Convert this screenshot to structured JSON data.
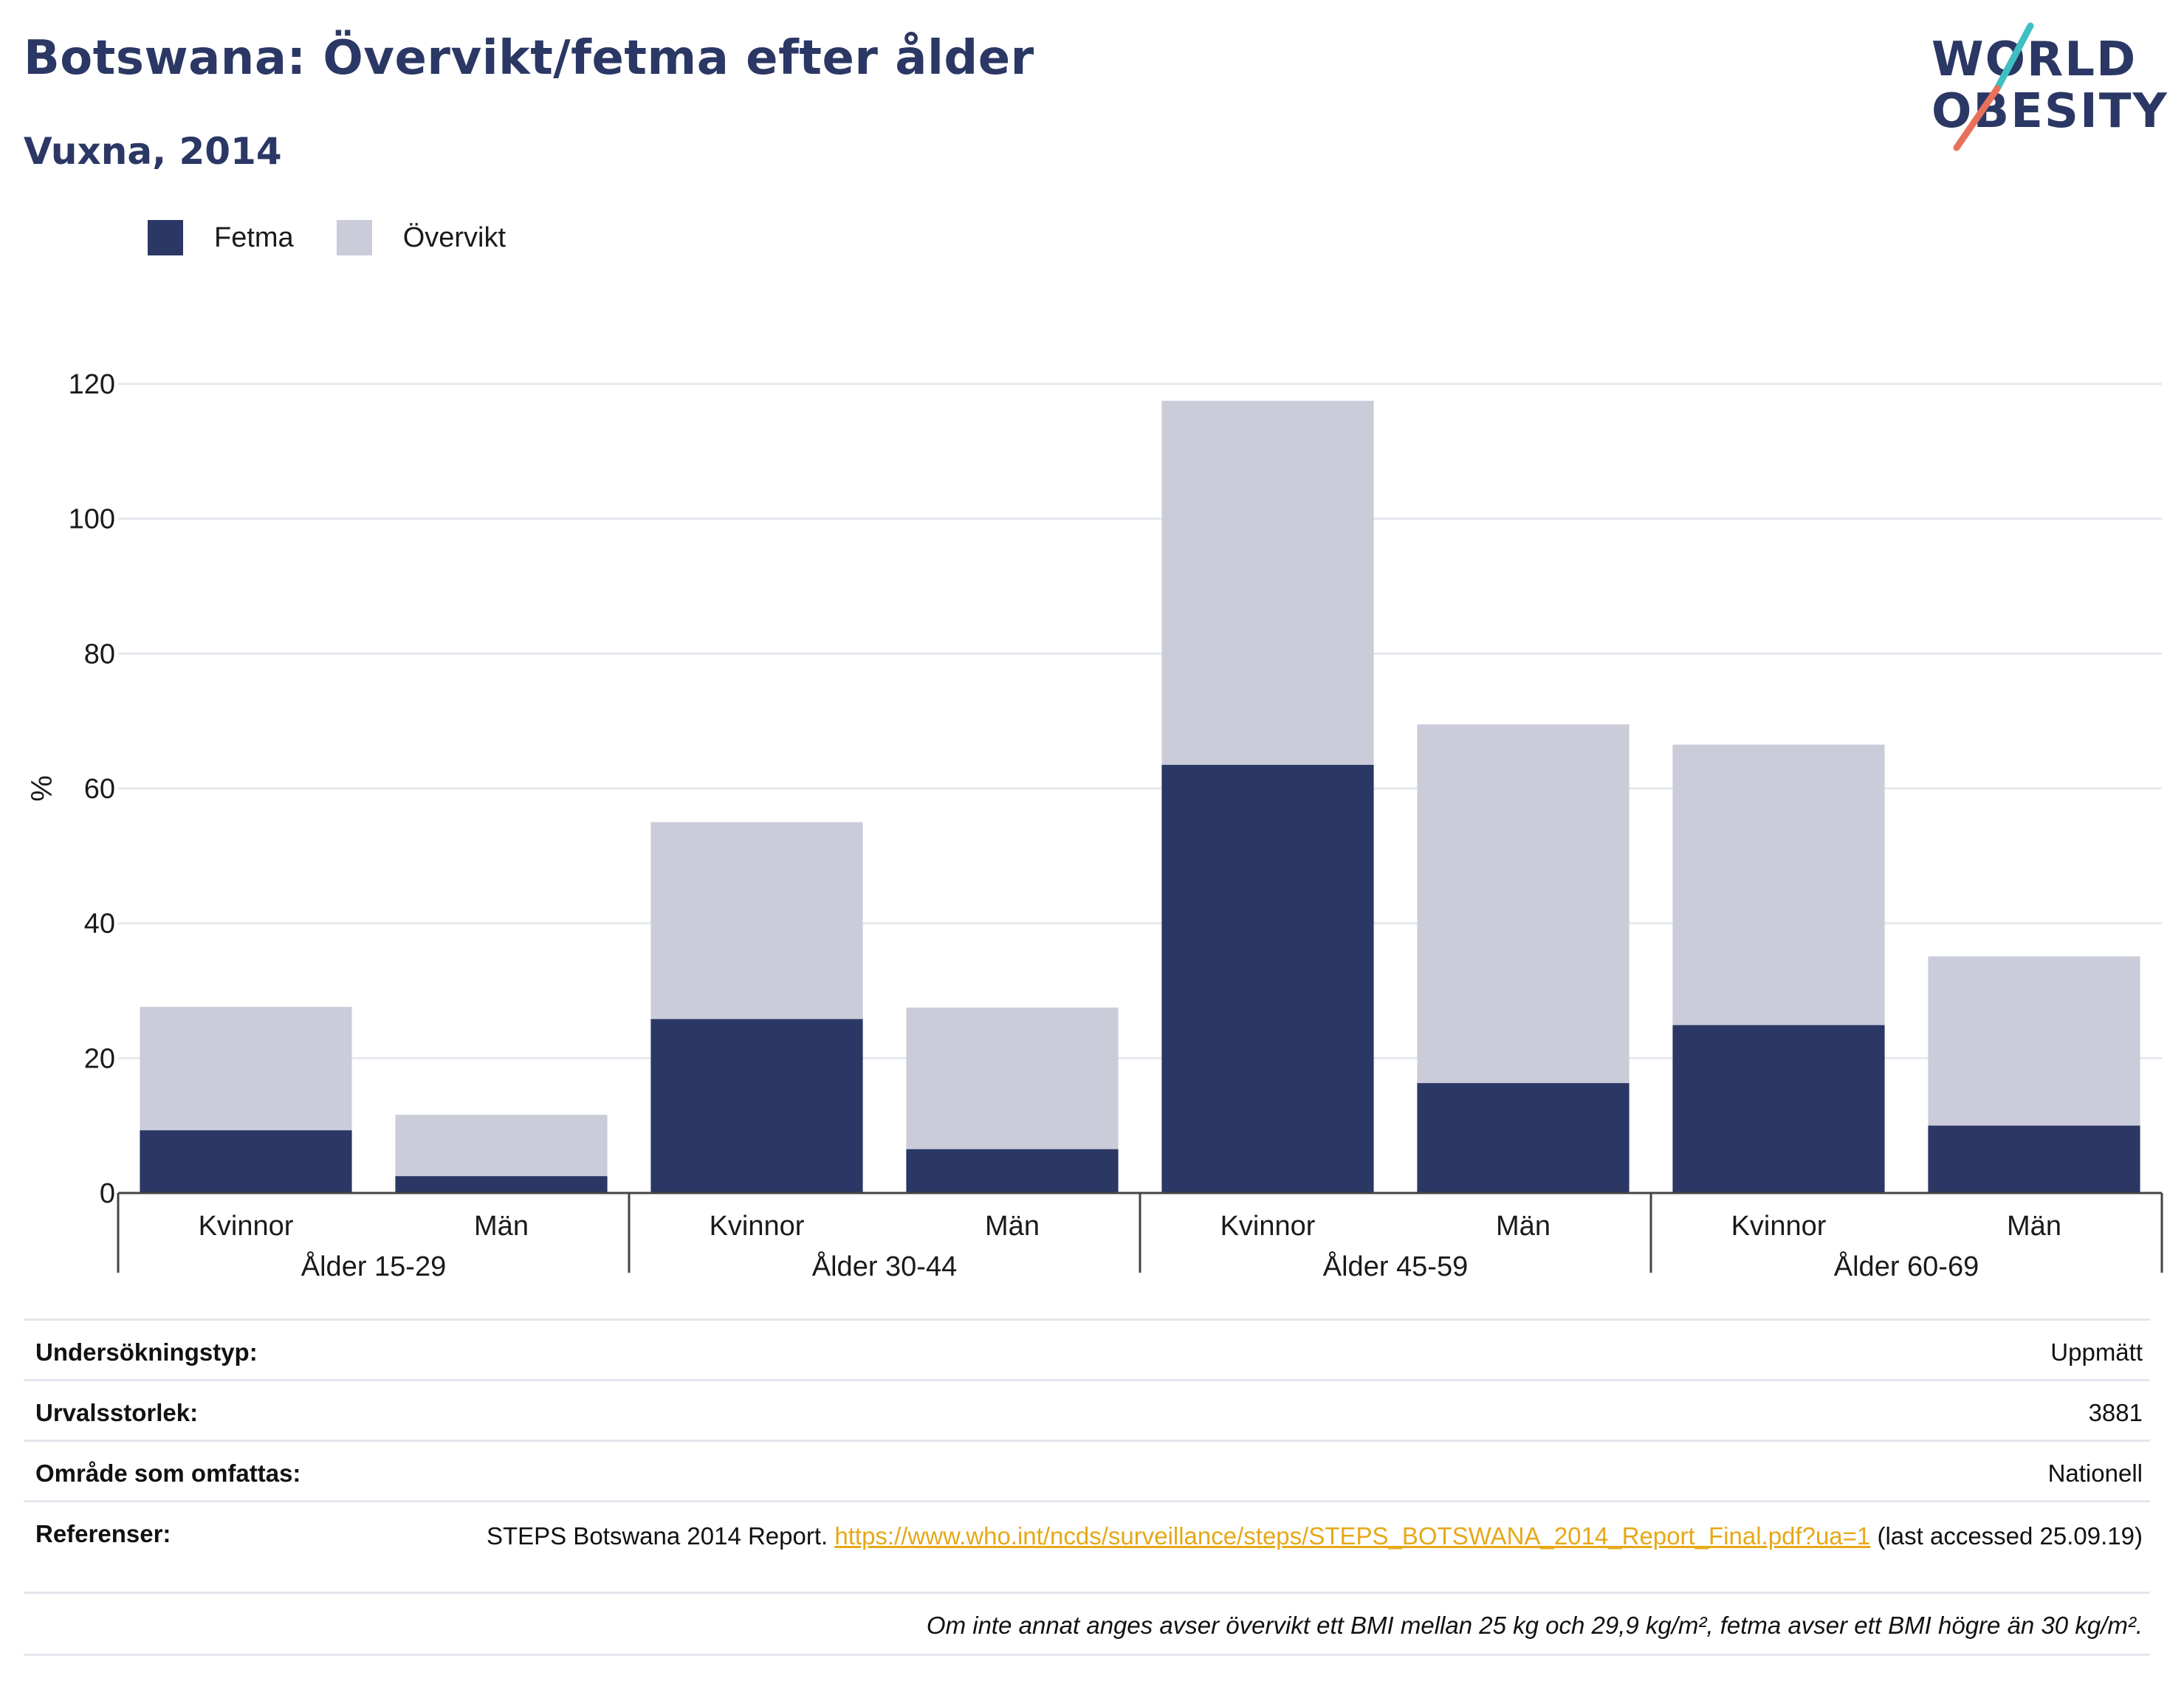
{
  "title": "Botswana: Övervikt/fetma efter ålder",
  "subtitle": "Vuxna, 2014",
  "logo": {
    "line1": "WORLD",
    "line2": "OBESITY"
  },
  "colors": {
    "fetma": "#2b3764",
    "overvikt": "#cacdd9",
    "accent_teal": "#3fbfc1",
    "accent_red": "#e8715b",
    "link": "#e6a817"
  },
  "legend": [
    {
      "label": "Fetma",
      "color": "#2b3764"
    },
    {
      "label": "Övervikt",
      "color": "#cacdd9"
    }
  ],
  "chart_data": {
    "type": "bar",
    "stacked": true,
    "ylabel": "%",
    "ylim": [
      0,
      120
    ],
    "yticks": [
      0,
      20,
      40,
      60,
      80,
      100,
      120
    ],
    "grid": true,
    "legend_position": "top-left",
    "groups": [
      "Ålder 15-29",
      "Ålder 30-44",
      "Ålder 45-59",
      "Ålder 60-69"
    ],
    "categories": [
      "Kvinnor",
      "Män",
      "Kvinnor",
      "Män",
      "Kvinnor",
      "Män",
      "Kvinnor",
      "Män"
    ],
    "series": [
      {
        "name": "Fetma",
        "values": [
          9.3,
          2.5,
          25.8,
          6.5,
          63.5,
          16.3,
          24.9,
          10.0
        ]
      },
      {
        "name": "Övervikt",
        "values": [
          18.3,
          9.1,
          29.2,
          21.0,
          54.0,
          53.2,
          41.6,
          25.1
        ]
      }
    ]
  },
  "info": [
    {
      "key": "Undersökningstyp:",
      "value": "Uppmätt"
    },
    {
      "key": "Urvalsstorlek:",
      "value": "3881"
    },
    {
      "key": "Område som omfattas:",
      "value": "Nationell"
    }
  ],
  "references": {
    "key": "Referenser:",
    "text_before": "STEPS Botswana 2014 Report. ",
    "link": "https://www.who.int/ncds/surveillance/steps/STEPS_BOTSWANA_2014_Report_Final.pdf?ua=1",
    "text_after": " (last accessed 25.09.19)"
  },
  "footnote": "Om inte annat anges avser övervikt ett BMI mellan 25 kg och 29,9 kg/m², fetma avser ett BMI högre än 30 kg/m²."
}
